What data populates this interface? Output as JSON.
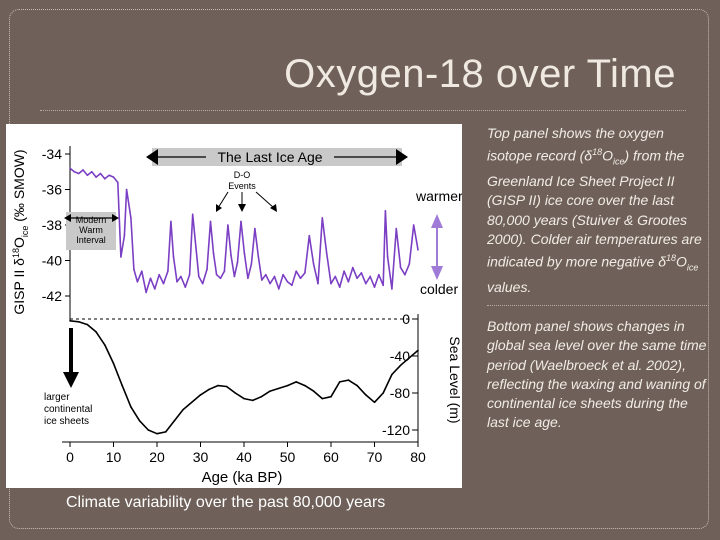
{
  "slide": {
    "title": "Oxygen-18 over Time",
    "caption": "Climate variability over the past 80,000 years"
  },
  "description": {
    "top_parts": [
      "Top panel shows the oxygen isotope record (δ",
      "18",
      "O",
      "ice",
      ") from the Greenland Ice Sheet Project II (GISP II) ice core over the last 80,000 years (Stuiver & Grootes 2000). Colder air temperatures are indicated by more negative δ",
      "18",
      "O",
      "ice",
      " values."
    ],
    "bottom": "Bottom panel shows changes in global sea level over the same time period (Waelbroeck et al. 2002), reflecting the waxing and waning of continental ice sheets during the last ice age."
  },
  "colors": {
    "background": "#6f6159",
    "isotope_line": "#7b3fc4",
    "sea_level_line": "#000000",
    "arrow_purple": "#9f7ad6"
  },
  "chart_data": [
    {
      "type": "line",
      "panel": "top",
      "ylabel_parts": [
        "GISP II δ",
        "18",
        "O",
        "ice",
        " (‰ SMOW)"
      ],
      "yticks": [
        -34,
        -36,
        -38,
        -40,
        -42
      ],
      "ylim": [
        -43,
        -33
      ],
      "xlim": [
        0,
        80
      ],
      "annotations": {
        "ice_age": "The Last Ice Age",
        "do_events_line1": "D-O",
        "do_events_line2": "Events",
        "modern_line1": "Modern",
        "modern_line2": "Warm",
        "modern_line3": "Interval",
        "warmer": "warmer",
        "colder": "colder"
      },
      "series": [
        {
          "name": "GISP II δ18O ice",
          "x": [
            0,
            1,
            2,
            3,
            4,
            5,
            6,
            7,
            8,
            9,
            10,
            11,
            11.7,
            12.5,
            13,
            14,
            14.7,
            15.5,
            16.5,
            17.5,
            18.5,
            19.5,
            20.5,
            21.5,
            22.5,
            23.2,
            23.8,
            24.6,
            25.5,
            26.5,
            27.5,
            28.2,
            28.8,
            29.6,
            30.5,
            31.5,
            32.3,
            33,
            33.7,
            34.6,
            35.5,
            36.3,
            37,
            37.8,
            38.5,
            39.3,
            40.1,
            40.9,
            41.7,
            42.5,
            43.3,
            44.1,
            45,
            46,
            47,
            48,
            49,
            50,
            51,
            52,
            53,
            54,
            55,
            56,
            57,
            58,
            59,
            60,
            61,
            62,
            63,
            64,
            65,
            66,
            67,
            68,
            69,
            70,
            71,
            72,
            72.5,
            73,
            74,
            75,
            76,
            77,
            78,
            79,
            80
          ],
          "values": [
            -34.8,
            -35.0,
            -35.1,
            -34.9,
            -35.2,
            -35.0,
            -35.3,
            -35.1,
            -35.4,
            -35.2,
            -35.3,
            -35.6,
            -39.8,
            -38.6,
            -36.0,
            -37.6,
            -40.5,
            -41.2,
            -40.6,
            -41.8,
            -41.0,
            -41.6,
            -40.8,
            -41.3,
            -40.6,
            -37.8,
            -39.8,
            -41.2,
            -40.9,
            -41.5,
            -40.8,
            -37.4,
            -38.9,
            -40.9,
            -41.3,
            -40.5,
            -37.8,
            -39.6,
            -40.8,
            -41.0,
            -40.6,
            -38.0,
            -39.7,
            -40.9,
            -40.1,
            -37.8,
            -39.6,
            -41.0,
            -40.2,
            -38.2,
            -39.8,
            -41.1,
            -40.8,
            -41.3,
            -40.9,
            -41.6,
            -40.8,
            -41.2,
            -41.4,
            -40.6,
            -41.0,
            -40.7,
            -38.6,
            -40.2,
            -41.3,
            -37.6,
            -39.6,
            -41.3,
            -40.9,
            -41.5,
            -40.6,
            -41.2,
            -40.4,
            -41.0,
            -40.7,
            -41.3,
            -40.9,
            -41.5,
            -40.8,
            -41.4,
            -37.2,
            -39.8,
            -41.6,
            -38.2,
            -40.4,
            -40.8,
            -40.2,
            -38.0,
            -39.4
          ]
        }
      ]
    },
    {
      "type": "line",
      "panel": "bottom",
      "ylabel": "Sea Level (m)",
      "xlabel": "Age (ka BP)",
      "yticks": [
        0,
        -40,
        -80,
        -120
      ],
      "ylim": [
        -130,
        5
      ],
      "xticks": [
        0,
        10,
        20,
        30,
        40,
        50,
        60,
        70,
        80
      ],
      "xlim": [
        0,
        80
      ],
      "annotations": {
        "ice_line1": "larger",
        "ice_line2": "continental",
        "ice_line3": "ice sheets"
      },
      "series": [
        {
          "name": "Global sea level",
          "x": [
            0,
            2,
            4,
            6,
            8,
            10,
            12,
            14,
            16,
            18,
            20,
            22,
            24,
            26,
            28,
            30,
            32,
            34,
            36,
            38,
            40,
            42,
            44,
            46,
            48,
            50,
            52,
            54,
            56,
            58,
            60,
            62,
            64,
            66,
            68,
            70,
            72,
            74,
            76,
            78,
            80
          ],
          "values": [
            -2,
            -3,
            -6,
            -14,
            -28,
            -48,
            -72,
            -95,
            -110,
            -120,
            -124,
            -122,
            -110,
            -98,
            -90,
            -82,
            -76,
            -72,
            -73,
            -80,
            -86,
            -88,
            -84,
            -78,
            -75,
            -72,
            -68,
            -72,
            -78,
            -86,
            -84,
            -68,
            -66,
            -72,
            -82,
            -90,
            -80,
            -60,
            -50,
            -42,
            -34
          ]
        }
      ]
    }
  ]
}
